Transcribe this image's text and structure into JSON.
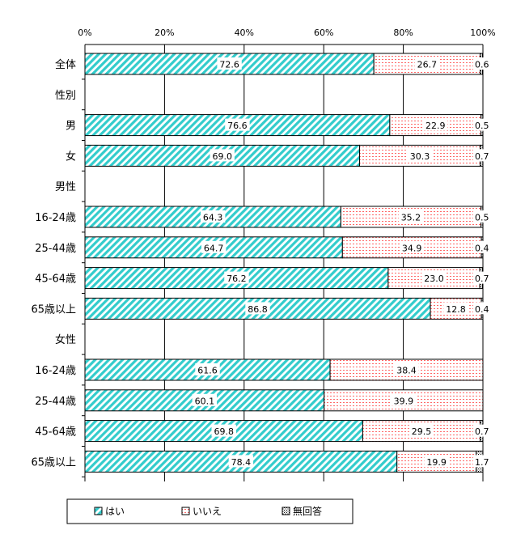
{
  "chart_data": {
    "type": "bar",
    "orientation": "horizontal",
    "stacked": true,
    "percent": true,
    "xlim": [
      0,
      100
    ],
    "xticks": [
      "0%",
      "20%",
      "40%",
      "60%",
      "80%",
      "100%"
    ],
    "grid": true,
    "legend_position": "bottom",
    "series": [
      {
        "name": "はい",
        "color": "#33cccc",
        "pattern": "diagonal-stripe"
      },
      {
        "name": "いいえ",
        "color": "#ff9999",
        "pattern": "horizontal-dotted"
      },
      {
        "name": "無回答",
        "color": "#000000",
        "pattern": "crosshatch"
      }
    ],
    "rows": [
      {
        "label": "全体",
        "values": [
          72.6,
          26.7,
          0.6
        ],
        "labels": [
          "72.6",
          "26.7",
          "0.6"
        ]
      },
      {
        "label": "性別",
        "header": true
      },
      {
        "label": "男",
        "values": [
          76.6,
          22.9,
          0.5
        ],
        "labels": [
          "76.6",
          "22.9",
          "0.5"
        ]
      },
      {
        "label": "女",
        "values": [
          69.0,
          30.3,
          0.7
        ],
        "labels": [
          "69.0",
          "30.3",
          "0.7"
        ]
      },
      {
        "label": "男性",
        "header": true
      },
      {
        "label": "16-24歳",
        "values": [
          64.3,
          35.2,
          0.5
        ],
        "labels": [
          "64.3",
          "35.2",
          "0.5"
        ]
      },
      {
        "label": "25-44歳",
        "values": [
          64.7,
          34.9,
          0.4
        ],
        "labels": [
          "64.7",
          "34.9",
          "0.4"
        ]
      },
      {
        "label": "45-64歳",
        "values": [
          76.2,
          23.0,
          0.7
        ],
        "labels": [
          "76.2",
          "23.0",
          "0.7"
        ]
      },
      {
        "label": "65歳以上",
        "values": [
          86.8,
          12.8,
          0.4
        ],
        "labels": [
          "86.8",
          "12.8",
          "0.4"
        ]
      },
      {
        "label": "女性",
        "header": true
      },
      {
        "label": "16-24歳",
        "values": [
          61.6,
          38.4,
          0.0
        ],
        "labels": [
          "61.6",
          "38.4",
          ""
        ]
      },
      {
        "label": "25-44歳",
        "values": [
          60.1,
          39.9,
          0.0
        ],
        "labels": [
          "60.1",
          "39.9",
          ""
        ]
      },
      {
        "label": "45-64歳",
        "values": [
          69.8,
          29.5,
          0.7
        ],
        "labels": [
          "69.8",
          "29.5",
          "0.7"
        ]
      },
      {
        "label": "65歳以上",
        "values": [
          78.4,
          19.9,
          1.7
        ],
        "labels": [
          "78.4",
          "19.9",
          "1.7"
        ]
      }
    ]
  }
}
